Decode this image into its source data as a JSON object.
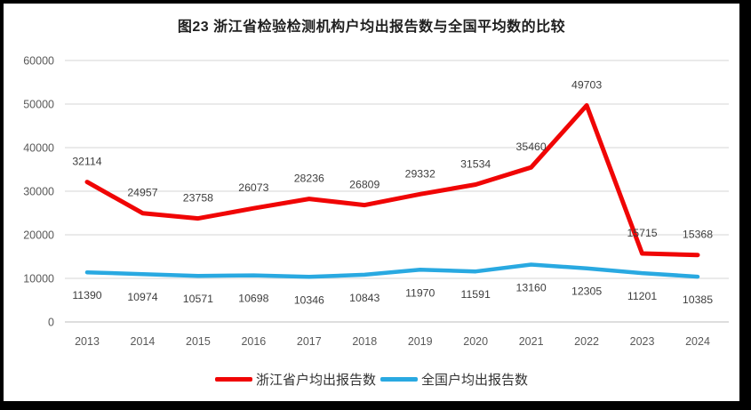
{
  "title": "图23  浙江省检验检测机构户均出报告数与全国平均数的比较",
  "chart_data": {
    "type": "line",
    "title": "图23  浙江省检验检测机构户均出报告数与全国平均数的比较",
    "categories": [
      "2013",
      "2014",
      "2015",
      "2016",
      "2017",
      "2018",
      "2019",
      "2020",
      "2021",
      "2022",
      "2023",
      "2024"
    ],
    "series": [
      {
        "name": "浙江省户均出报告数",
        "color": "#f00505",
        "stroke_width": 5,
        "label_side": "above",
        "values": [
          32114,
          24957,
          23758,
          26073,
          28236,
          26809,
          29332,
          31534,
          35460,
          49703,
          15715,
          15368
        ]
      },
      {
        "name": "全国户均出报告数",
        "color": "#29a9e1",
        "stroke_width": 4.5,
        "label_side": "below",
        "values": [
          11390,
          10974,
          10571,
          10698,
          10346,
          10843,
          11970,
          11591,
          13160,
          12305,
          11201,
          10385
        ]
      }
    ],
    "xlabel": "",
    "ylabel": "",
    "ylim": [
      0,
      60000
    ],
    "ytick_step": 10000,
    "yticks": [
      "0",
      "10000",
      "20000",
      "30000",
      "40000",
      "50000",
      "60000"
    ],
    "grid": true,
    "legend_position": "bottom",
    "data_labels": true
  }
}
